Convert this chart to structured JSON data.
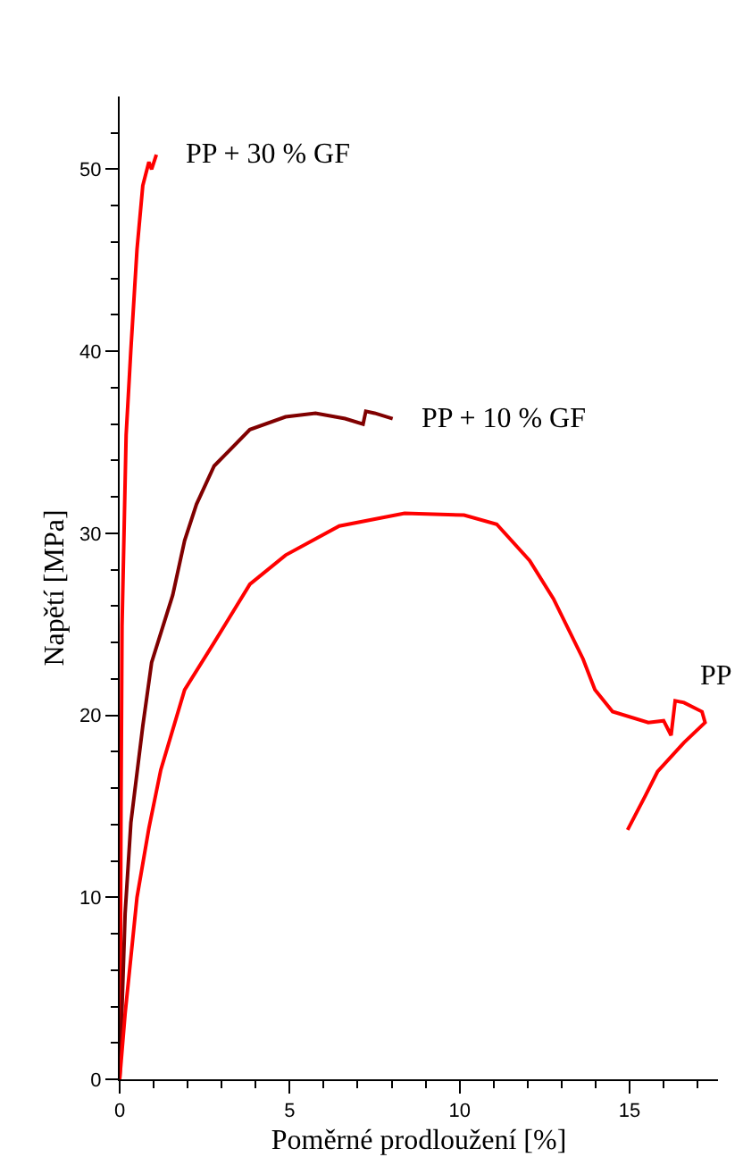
{
  "chart_data": {
    "type": "line",
    "xlabel": "Poměrné prodloužení [%]",
    "ylabel": "Napětí [MPa]",
    "xlim": [
      0,
      17.6
    ],
    "ylim": [
      0,
      54
    ],
    "xticks": [
      0,
      {
        "value": 1,
        "label": null
      },
      {
        "value": 2,
        "label": null
      },
      {
        "value": 3,
        "label": null
      },
      {
        "value": 4,
        "label": null
      },
      5,
      {
        "value": 6,
        "label": null
      },
      {
        "value": 7,
        "label": null
      },
      {
        "value": 8,
        "label": null
      },
      {
        "value": 9,
        "label": null
      },
      10,
      {
        "value": 11,
        "label": null
      },
      {
        "value": 12,
        "label": null
      },
      {
        "value": 13,
        "label": null
      },
      {
        "value": 14,
        "label": null
      },
      15,
      {
        "value": 16,
        "label": null
      },
      {
        "value": 17,
        "label": null
      }
    ],
    "yticks": [
      0,
      {
        "value": 2,
        "label": null
      },
      {
        "value": 4,
        "label": null
      },
      {
        "value": 6,
        "label": null
      },
      {
        "value": 8,
        "label": null
      },
      10,
      {
        "value": 12,
        "label": null
      },
      {
        "value": 14,
        "label": null
      },
      {
        "value": 16,
        "label": null
      },
      {
        "value": 18,
        "label": null
      },
      20,
      {
        "value": 22,
        "label": null
      },
      {
        "value": 24,
        "label": null
      },
      {
        "value": 26,
        "label": null
      },
      {
        "value": 28,
        "label": null
      },
      30,
      {
        "value": 32,
        "label": null
      },
      {
        "value": 34,
        "label": null
      },
      {
        "value": 36,
        "label": null
      },
      {
        "value": 38,
        "label": null
      },
      40,
      {
        "value": 42,
        "label": null
      },
      {
        "value": 44,
        "label": null
      },
      {
        "value": 46,
        "label": null
      },
      {
        "value": 48,
        "label": null
      },
      50,
      {
        "value": 52,
        "label": null
      }
    ],
    "grid": false,
    "legend": false,
    "marker": "none",
    "line_style": "solid",
    "series": [
      {
        "name": "PP + 30 % GF",
        "color": "#ff0000",
        "x": [
          0,
          0.02,
          0.04,
          0.07,
          0.19,
          0.33,
          0.51,
          0.68,
          0.86,
          0.94,
          1.08
        ],
        "values": [
          0,
          5,
          15,
          24.9,
          35.4,
          40.1,
          45.6,
          49.1,
          50.4,
          50,
          50.8
        ]
      },
      {
        "name": "PP + 10 % GF",
        "color": "#800000",
        "x": [
          0,
          0.16,
          0.33,
          0.68,
          0.94,
          1.56,
          1.91,
          2.26,
          2.78,
          3.83,
          4.88,
          5.76,
          6.63,
          7.16,
          7.24,
          7.5,
          8.03
        ],
        "values": [
          0,
          9.1,
          14.1,
          19.4,
          22.9,
          26.6,
          29.6,
          31.6,
          33.7,
          35.7,
          36.4,
          36.6,
          36.3,
          36,
          36.7,
          36.6,
          36.3
        ]
      },
      {
        "name": "PP",
        "color": "#ff0000",
        "x": [
          0,
          0.16,
          0.51,
          0.86,
          1.21,
          1.91,
          2.78,
          3.83,
          4.88,
          6.46,
          8.38,
          10.13,
          11.09,
          12.06,
          12.76,
          13.63,
          13.98,
          14.5,
          15.55,
          16,
          16.22,
          16.34,
          16.6,
          17.13,
          17.22,
          16.6,
          15.82,
          15.47,
          14.94
        ],
        "values": [
          0,
          3.6,
          10,
          13.8,
          17,
          21.4,
          24,
          27.2,
          28.8,
          30.4,
          31.1,
          31,
          30.5,
          28.5,
          26.4,
          23.1,
          21.4,
          20.2,
          19.6,
          19.7,
          18.9,
          20.8,
          20.7,
          20.2,
          19.6,
          18.5,
          16.9,
          15.6,
          13.7
        ]
      }
    ]
  }
}
